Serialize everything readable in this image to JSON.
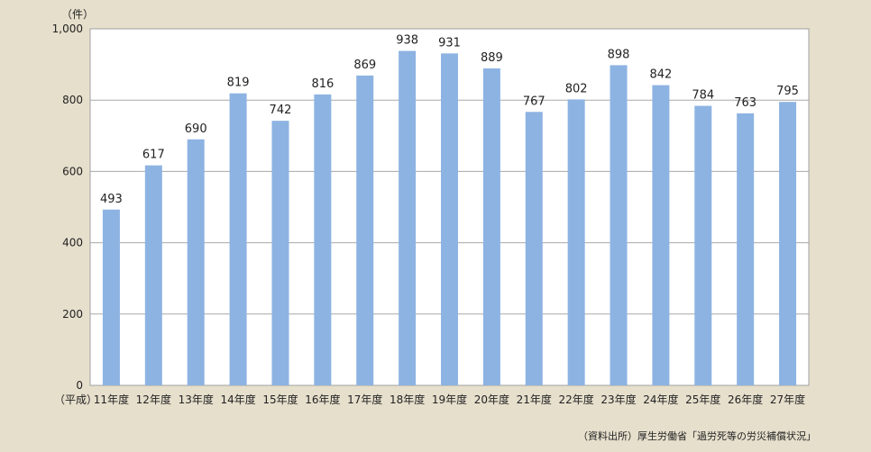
{
  "chart_data": {
    "type": "bar",
    "unit_label": "（件）",
    "era_label": "（平成）",
    "categories": [
      "11年度",
      "12年度",
      "13年度",
      "14年度",
      "15年度",
      "16年度",
      "17年度",
      "18年度",
      "19年度",
      "20年度",
      "21年度",
      "22年度",
      "23年度",
      "24年度",
      "25年度",
      "26年度",
      "27年度"
    ],
    "values": [
      493,
      617,
      690,
      819,
      742,
      816,
      869,
      938,
      931,
      889,
      767,
      802,
      898,
      842,
      784,
      763,
      795
    ],
    "ylim": [
      0,
      1000
    ],
    "yticks": [
      0,
      200,
      400,
      600,
      800,
      1000
    ],
    "ytick_labels": [
      "0",
      "200",
      "400",
      "600",
      "800",
      "1,000"
    ],
    "grid": true,
    "bar_color": "#8db3e2",
    "source_note": "（資料出所）厚生労働省「過労死等の労災補償状況」"
  }
}
